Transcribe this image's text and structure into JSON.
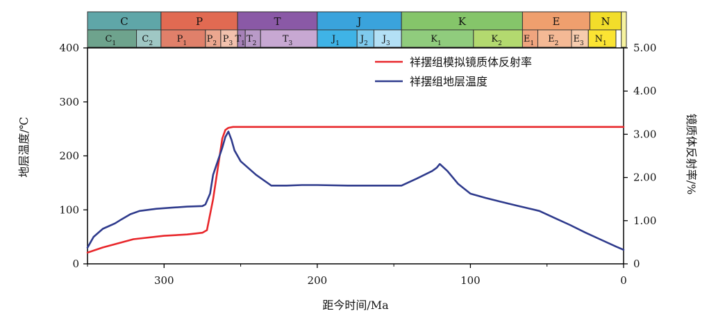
{
  "chart_data": {
    "type": "line",
    "xlabel": "距今时间/Ma",
    "ylabel_left": "地层温度/℃",
    "ylabel_right": "镜质体反射率/%",
    "xlim": [
      350,
      0
    ],
    "ylim_left": [
      0,
      400
    ],
    "ylim_right": [
      0,
      5.0
    ],
    "x_ticks": [
      300,
      200,
      100,
      0
    ],
    "y_left_ticks": [
      0,
      100,
      200,
      300,
      400
    ],
    "y_right_ticks": [
      "0",
      "1.00",
      "2.00",
      "3.00",
      "4.00",
      "5.00"
    ],
    "legend_position": "top-right",
    "series": [
      {
        "name": "祥摆组模拟镜质体反射率",
        "axis": "right",
        "color": "#e8262a",
        "x": [
          350,
          340,
          320,
          300,
          285,
          275,
          272,
          268,
          265,
          262,
          260,
          258,
          255,
          250,
          240,
          200,
          100,
          50,
          0
        ],
        "y": [
          0.26,
          0.38,
          0.57,
          0.65,
          0.68,
          0.72,
          0.78,
          1.5,
          2.2,
          2.9,
          3.1,
          3.15,
          3.17,
          3.17,
          3.17,
          3.17,
          3.17,
          3.17,
          3.17
        ]
      },
      {
        "name": "祥摆组地层温度",
        "axis": "left",
        "color": "#2e3a8c",
        "x": [
          350,
          346,
          340,
          332,
          328,
          322,
          316,
          305,
          295,
          285,
          275,
          273,
          270,
          268,
          262,
          260,
          258,
          256,
          254,
          250,
          240,
          230,
          220,
          210,
          200,
          180,
          160,
          145,
          135,
          125,
          122,
          120,
          115,
          108,
          100,
          90,
          80,
          70,
          55,
          45,
          35,
          25,
          15,
          5,
          0
        ],
        "y": [
          30,
          50,
          65,
          75,
          82,
          92,
          98,
          102,
          104,
          106,
          107,
          110,
          130,
          165,
          215,
          235,
          245,
          230,
          210,
          190,
          165,
          145,
          145,
          146,
          146,
          145,
          145,
          145,
          158,
          172,
          178,
          185,
          172,
          148,
          130,
          122,
          115,
          108,
          98,
          85,
          72,
          58,
          45,
          32,
          26
        ]
      }
    ],
    "geologic_periods": [
      {
        "label": "C",
        "from": 350,
        "to": 302,
        "color": "#5fa6a8"
      },
      {
        "label": "P",
        "from": 302,
        "to": 252,
        "color": "#e16a52"
      },
      {
        "label": "T",
        "from": 252,
        "to": 200,
        "color": "#8a59a6"
      },
      {
        "label": "J",
        "from": 200,
        "to": 145,
        "color": "#3aa3dc"
      },
      {
        "label": "K",
        "from": 145,
        "to": 66,
        "color": "#85c56a"
      },
      {
        "label": "E",
        "from": 66,
        "to": 22,
        "color": "#ef9f6e"
      },
      {
        "label": "N",
        "from": 22,
        "to": 1.5,
        "color": "#f2dd2a"
      }
    ],
    "geologic_epochs": [
      {
        "label": "C",
        "sub": "1",
        "from": 350,
        "to": 318,
        "color": "#6ea38d"
      },
      {
        "label": "C",
        "sub": "2",
        "from": 318,
        "to": 302,
        "color": "#9fc7c4"
      },
      {
        "label": "P",
        "sub": "1",
        "from": 302,
        "to": 273,
        "color": "#e0806a"
      },
      {
        "label": "P",
        "sub": "2",
        "from": 273,
        "to": 263,
        "color": "#eca78f"
      },
      {
        "label": "P",
        "sub": "3",
        "from": 263,
        "to": 252,
        "color": "#f2c1ad"
      },
      {
        "label": "T",
        "sub": "1",
        "from": 252,
        "to": 247,
        "color": "#a681b8"
      },
      {
        "label": "T",
        "sub": "2",
        "from": 247,
        "to": 237,
        "color": "#b99ac8"
      },
      {
        "label": "T",
        "sub": "3",
        "from": 237,
        "to": 200,
        "color": "#c7a8d2"
      },
      {
        "label": "J",
        "sub": "1",
        "from": 200,
        "to": 174,
        "color": "#3fb3e6"
      },
      {
        "label": "J",
        "sub": "2",
        "from": 174,
        "to": 163,
        "color": "#7fcbee"
      },
      {
        "label": "J",
        "sub": "3",
        "from": 163,
        "to": 145,
        "color": "#b3e0f5"
      },
      {
        "label": "K",
        "sub": "1",
        "from": 145,
        "to": 98,
        "color": "#90cc7d"
      },
      {
        "label": "K",
        "sub": "2",
        "from": 98,
        "to": 66,
        "color": "#b3d96f"
      },
      {
        "label": "E",
        "sub": "1",
        "from": 66,
        "to": 56,
        "color": "#f0a57f"
      },
      {
        "label": "E",
        "sub": "2",
        "from": 56,
        "to": 34,
        "color": "#f4b995"
      },
      {
        "label": "E",
        "sub": "3",
        "from": 34,
        "to": 23,
        "color": "#f7ccae"
      },
      {
        "label": "N",
        "sub": "1",
        "from": 23,
        "to": 5,
        "color": "#fbe433"
      }
    ]
  }
}
